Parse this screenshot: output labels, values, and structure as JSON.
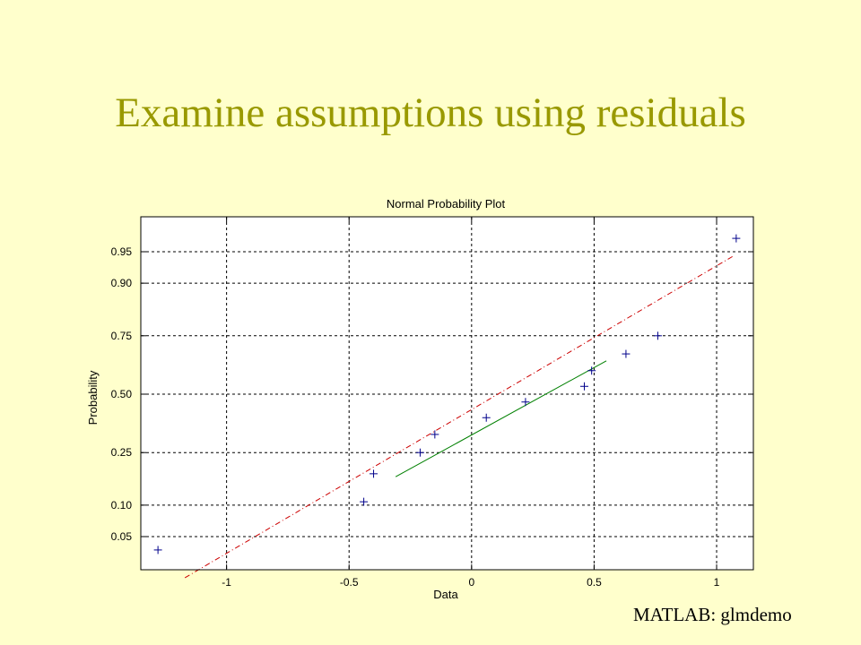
{
  "slide": {
    "title": "Examine assumptions using residuals",
    "caption": "MATLAB: glmdemo"
  },
  "colors": {
    "background": "#ffffcc",
    "title": "#999900",
    "points": "#00008b",
    "fit_line": "#cc0000",
    "center_line": "#008000"
  },
  "chart_data": {
    "type": "scatter",
    "title": "Normal Probability Plot",
    "xlabel": "Data",
    "ylabel": "Probability",
    "xlim": [
      -1.35,
      1.15
    ],
    "x_ticks": [
      {
        "value": -1,
        "label": "-1"
      },
      {
        "value": -0.5,
        "label": "-0.5"
      },
      {
        "value": 0,
        "label": "0"
      },
      {
        "value": 0.5,
        "label": "0.5"
      },
      {
        "value": 1,
        "label": "1"
      }
    ],
    "y_scale": "normal-probability",
    "y_ticks": [
      {
        "value": 0.05,
        "label": "0.05"
      },
      {
        "value": 0.1,
        "label": "0.10"
      },
      {
        "value": 0.25,
        "label": "0.25"
      },
      {
        "value": 0.5,
        "label": "0.50"
      },
      {
        "value": 0.75,
        "label": "0.75"
      },
      {
        "value": 0.9,
        "label": "0.90"
      },
      {
        "value": 0.95,
        "label": "0.95"
      }
    ],
    "grid": true,
    "marker": "+",
    "points": [
      {
        "x": -1.28,
        "y": 0.036
      },
      {
        "x": -0.44,
        "y": 0.107
      },
      {
        "x": -0.4,
        "y": 0.179
      },
      {
        "x": -0.21,
        "y": 0.25
      },
      {
        "x": -0.15,
        "y": 0.321
      },
      {
        "x": 0.06,
        "y": 0.393
      },
      {
        "x": 0.22,
        "y": 0.464
      },
      {
        "x": 0.46,
        "y": 0.536
      },
      {
        "x": 0.49,
        "y": 0.607
      },
      {
        "x": 0.63,
        "y": 0.679
      },
      {
        "x": 0.76,
        "y": 0.75
      },
      {
        "x": 1.08,
        "y": 0.964
      }
    ],
    "reference_line": {
      "x0": -1.17,
      "y0": 0.017,
      "x1": 1.07,
      "y1": 0.945
    },
    "center_segment": {
      "x0": -0.31,
      "y0": 0.17,
      "x1": 0.55,
      "y1": 0.65
    }
  }
}
